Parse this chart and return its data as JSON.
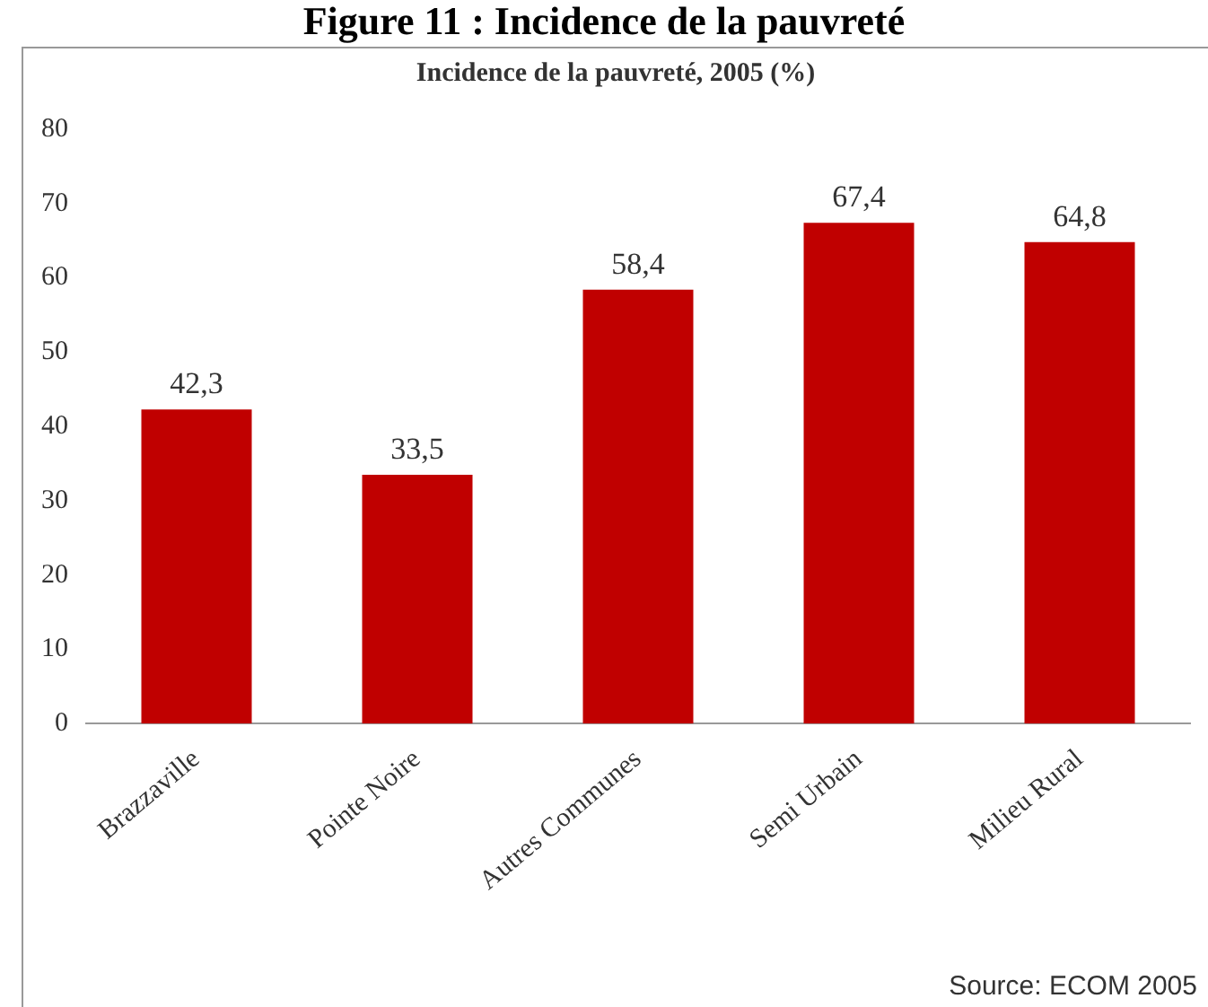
{
  "chart_data": {
    "type": "bar",
    "title": "Figure 11 : Incidence de la pauvreté",
    "subtitle": "Incidence de la pauvreté, 2005 (%)",
    "categories": [
      "Brazzaville",
      "Pointe Noire",
      "Autres Communes",
      "Semi Urbain",
      "Milieu Rural"
    ],
    "values": [
      42.3,
      33.5,
      58.4,
      67.4,
      64.8
    ],
    "color": "#c00000",
    "value_labels": [
      "42,3",
      "33,5",
      "58,4",
      "67,4",
      "64,8"
    ],
    "ylim": [
      0,
      80
    ],
    "yticks": [
      0,
      10,
      20,
      30,
      40,
      50,
      60,
      70,
      80
    ],
    "grid": false,
    "legend": false,
    "annotations": [
      "Source: ECOM 2005"
    ]
  }
}
